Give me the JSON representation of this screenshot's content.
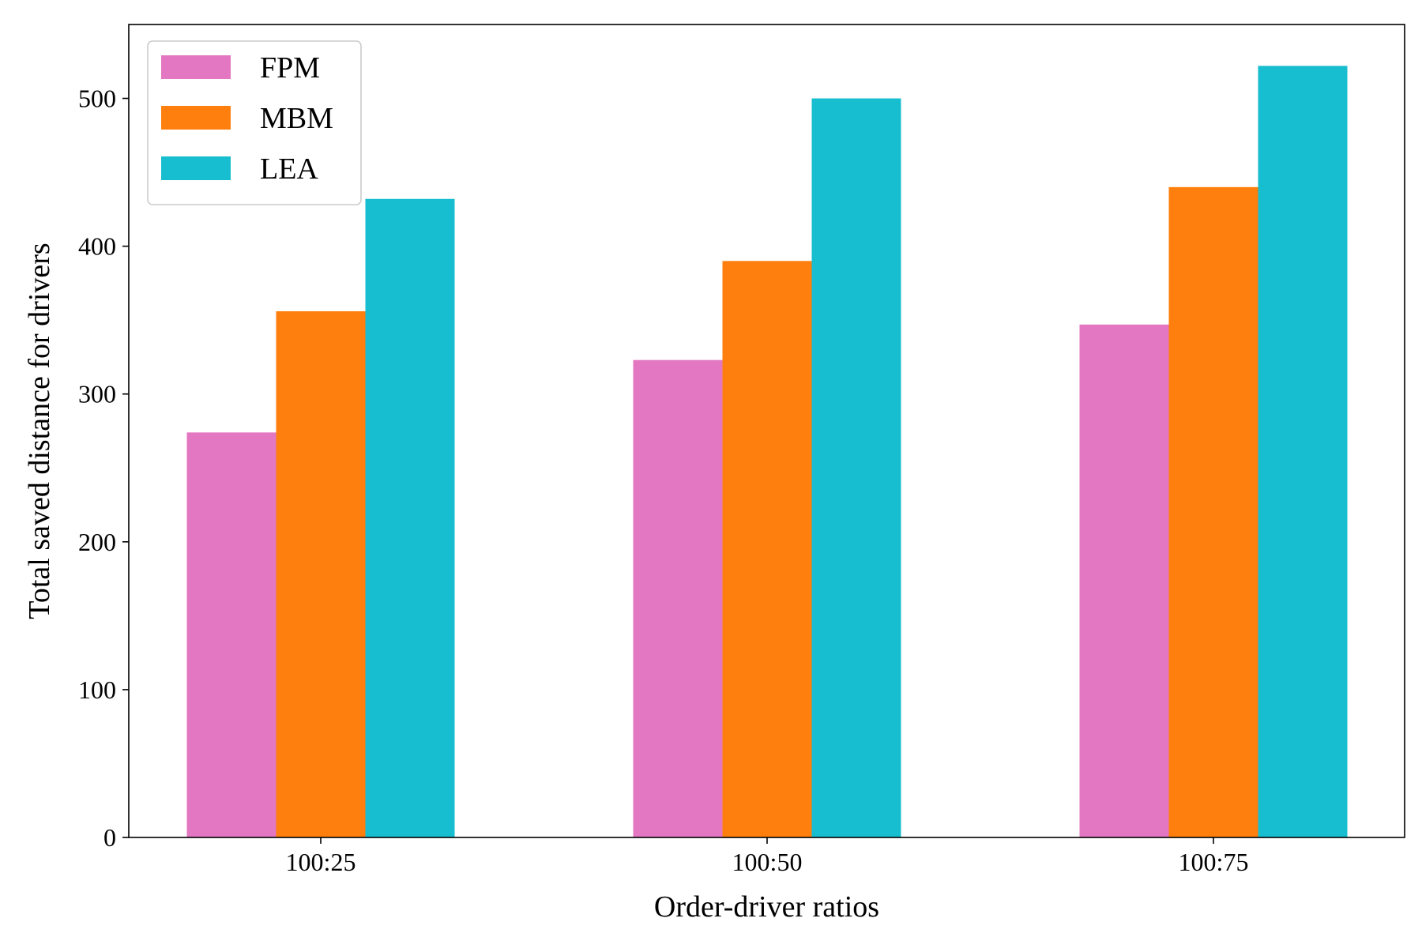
{
  "chart_data": {
    "type": "bar",
    "title": "",
    "xlabel": "Order-driver ratios",
    "ylabel": "Total saved distance for drivers",
    "categories": [
      "100:25",
      "100:50",
      "100:75"
    ],
    "series": [
      {
        "name": "FPM",
        "values": [
          274,
          323,
          347
        ],
        "color": "#e377c2"
      },
      {
        "name": "MBM",
        "values": [
          356,
          390,
          440
        ],
        "color": "#ff7f0e"
      },
      {
        "name": "LEA",
        "values": [
          432,
          500,
          522
        ],
        "color": "#17becf"
      }
    ],
    "ylim": [
      0,
      550
    ],
    "yticks": [
      "0",
      "100",
      "200",
      "300",
      "400",
      "500"
    ],
    "grid": false,
    "legend_position": "top-left"
  }
}
